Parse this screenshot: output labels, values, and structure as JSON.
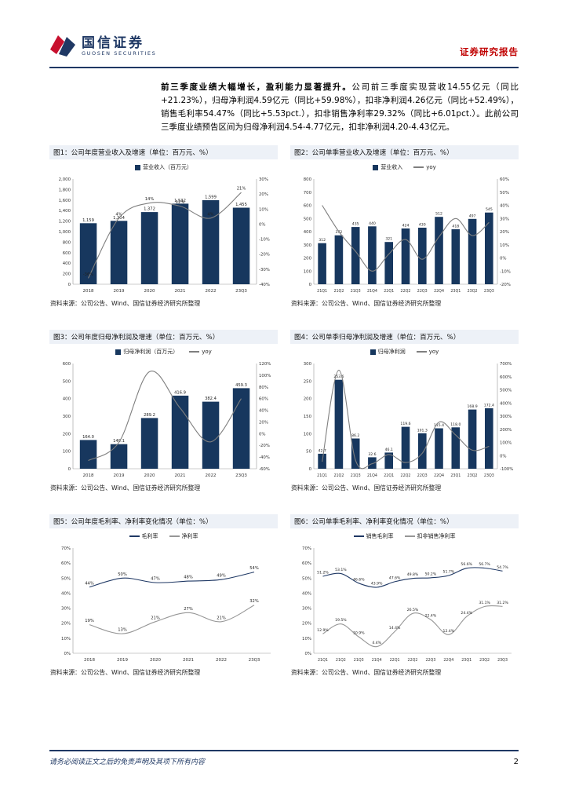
{
  "header": {
    "brand_cn": "国信证券",
    "brand_en": "GUOSEN SECURITIES",
    "report_type": "证券研究报告"
  },
  "summary": {
    "lead": "前三季度业绩大幅增长，盈利能力显著提升。",
    "body": "公司前三季度实现营收14.55亿元（同比+21.23%），归母净利润4.59亿元（同比+59.98%），扣非净利润4.26亿元（同比+52.49%），销售毛利率54.47%（同比+5.53pct.），扣非销售净利率29.32%（同比+6.01pct.）。此前公司三季度业绩预告区间为归母净利润4.54-4.77亿元，扣非净利润4.20-4.43亿元。"
  },
  "source_note": "资料来源：公司公告、Wind、国信证券经济研究所整理",
  "footer": {
    "disclaimer": "请务必阅读正文之后的免责声明及其项下所有内容",
    "page": "2"
  },
  "chart_data": [
    {
      "title": "图1：公司年度营业收入及增速（单位：百万元、%）",
      "type": "bar",
      "categories": [
        "2018",
        "2019",
        "2020",
        "2021",
        "2022",
        "23Q3"
      ],
      "series": [
        {
          "name": "营业收入（百万元）",
          "kind": "bar",
          "axis": "left",
          "color": "#17375E",
          "values": [
            1159,
            1204,
            1372,
            1532,
            1599,
            1455
          ],
          "decimals": 0,
          "suffix": "",
          "in_legend": true,
          "labels": true
        },
        {
          "name": "yoy",
          "kind": "line",
          "axis": "right",
          "color": "#7F7F7F",
          "values": [
            -36,
            4,
            14,
            12,
            4,
            21
          ],
          "decimals": 0,
          "suffix": "%",
          "in_legend": false,
          "labels": true
        }
      ],
      "left_axis": {
        "min": 0,
        "max": 2000,
        "step": 200,
        "suffix": ""
      },
      "right_axis": {
        "min": -40,
        "max": 30,
        "step": 10,
        "suffix": "%"
      }
    },
    {
      "title": "图2：公司单季营业收入及增速（单位：百万元、%）",
      "type": "bar",
      "categories": [
        "21Q1",
        "21Q2",
        "21Q3",
        "21Q4",
        "22Q1",
        "22Q2",
        "22Q3",
        "22Q4",
        "23Q1",
        "23Q2",
        "23Q3"
      ],
      "series": [
        {
          "name": "营业收入",
          "kind": "bar",
          "axis": "left",
          "color": "#17375E",
          "values": [
            312,
            372,
            435,
            440,
            321,
            424,
            430,
            512,
            418,
            497,
            545
          ],
          "decimals": 0,
          "suffix": "",
          "in_legend": true,
          "labels": true
        },
        {
          "name": "yoy",
          "kind": "line",
          "axis": "right",
          "color": "#7F7F7F",
          "values": [
            40,
            20,
            5,
            -10,
            3,
            14,
            -1,
            16,
            30,
            17,
            27
          ],
          "decimals": 0,
          "suffix": "%",
          "in_legend": true,
          "labels": false
        }
      ],
      "left_axis": {
        "min": 0,
        "max": 800,
        "step": 100,
        "suffix": ""
      },
      "right_axis": {
        "min": -20,
        "max": 60,
        "step": 10,
        "suffix": "%"
      }
    },
    {
      "title": "图3：公司年度归母净利润及增速（单位：百万元、%）",
      "type": "bar",
      "categories": [
        "2018",
        "2019",
        "2020",
        "2021",
        "2022",
        "23Q3"
      ],
      "series": [
        {
          "name": "归母净利润（百万元）",
          "kind": "bar",
          "axis": "left",
          "color": "#17375E",
          "values": [
            164.0,
            140.1,
            289.2,
            416.9,
            382.4,
            459.3
          ],
          "decimals": 1,
          "suffix": "",
          "in_legend": true,
          "labels": true
        },
        {
          "name": "yoy",
          "kind": "line",
          "axis": "right",
          "color": "#7F7F7F",
          "values": [
            -46,
            -15,
            106,
            44,
            -14,
            60
          ],
          "decimals": 0,
          "suffix": "%",
          "in_legend": true,
          "labels": false
        }
      ],
      "left_axis": {
        "min": 0,
        "max": 600,
        "step": 100,
        "suffix": ""
      },
      "right_axis": {
        "min": -60,
        "max": 120,
        "step": 20,
        "suffix": "%"
      }
    },
    {
      "title": "图4：公司单季归母净利润及增速（单位：百万元、%）",
      "type": "bar",
      "categories": [
        "21Q1",
        "21Q2",
        "21Q3",
        "21Q4",
        "22Q1",
        "22Q2",
        "22Q3",
        "22Q4",
        "23Q1",
        "23Q2",
        "23Q3"
      ],
      "series": [
        {
          "name": "归母净利润",
          "kind": "bar",
          "axis": "left",
          "color": "#17375E",
          "values": [
            42.7,
            253.6,
            86.2,
            32.6,
            46.1,
            119.6,
            101.3,
            115.4,
            118.0,
            168.9,
            172.4
          ],
          "decimals": 1,
          "suffix": "",
          "in_legend": true,
          "labels": true
        },
        {
          "name": "yoy",
          "kind": "line",
          "axis": "right",
          "color": "#7F7F7F",
          "values": [
            -47,
            650,
            -36,
            -62,
            8,
            -53,
            18,
            254,
            156,
            41,
            70
          ],
          "decimals": 0,
          "suffix": "%",
          "in_legend": true,
          "labels": false
        }
      ],
      "left_axis": {
        "min": 0,
        "max": 300,
        "step": 50,
        "suffix": ""
      },
      "right_axis": {
        "min": -100,
        "max": 700,
        "step": 100,
        "suffix": "%"
      }
    },
    {
      "title": "图5：公司年度毛利率、净利率变化情况（单位：%）",
      "type": "line",
      "categories": [
        "2018",
        "2019",
        "2020",
        "2021",
        "2022",
        "23Q3"
      ],
      "series": [
        {
          "name": "毛利率",
          "kind": "line",
          "axis": "left",
          "color": "#1F3864",
          "values": [
            44,
            50,
            47,
            48,
            49,
            54
          ],
          "decimals": 0,
          "suffix": "%",
          "in_legend": true,
          "labels": true
        },
        {
          "name": "净利率",
          "kind": "line",
          "axis": "left",
          "color": "#969696",
          "values": [
            19,
            13,
            21,
            27,
            21,
            32
          ],
          "decimals": 0,
          "suffix": "%",
          "in_legend": true,
          "labels": true
        }
      ],
      "left_axis": {
        "min": 0,
        "max": 70,
        "step": 10,
        "suffix": "%"
      },
      "right_axis": null
    },
    {
      "title": "图6：公司单季毛利率、净利率变化情况（单位：%）",
      "type": "line",
      "categories": [
        "21Q1",
        "21Q2",
        "21Q3",
        "21Q4",
        "22Q1",
        "22Q2",
        "22Q3",
        "22Q4",
        "23Q1",
        "23Q2",
        "23Q3"
      ],
      "series": [
        {
          "name": "销售毛利率",
          "kind": "line",
          "axis": "left",
          "color": "#1F3864",
          "values": [
            51.2,
            53.1,
            46.6,
            43.9,
            47.6,
            49.8,
            50.2,
            51.7,
            56.6,
            56.7,
            54.7
          ],
          "decimals": 1,
          "suffix": "%",
          "in_legend": true,
          "labels": true
        },
        {
          "name": "扣非销售净利率",
          "kind": "line",
          "axis": "left",
          "color": "#969696",
          "values": [
            12.9,
            19.5,
            10.9,
            4.4,
            14.4,
            26.5,
            22.4,
            12.4,
            24.4,
            31.1,
            31.2
          ],
          "decimals": 1,
          "suffix": "%",
          "in_legend": true,
          "labels": true
        }
      ],
      "left_axis": {
        "min": 0,
        "max": 70,
        "step": 10,
        "suffix": "%"
      },
      "right_axis": null
    }
  ]
}
